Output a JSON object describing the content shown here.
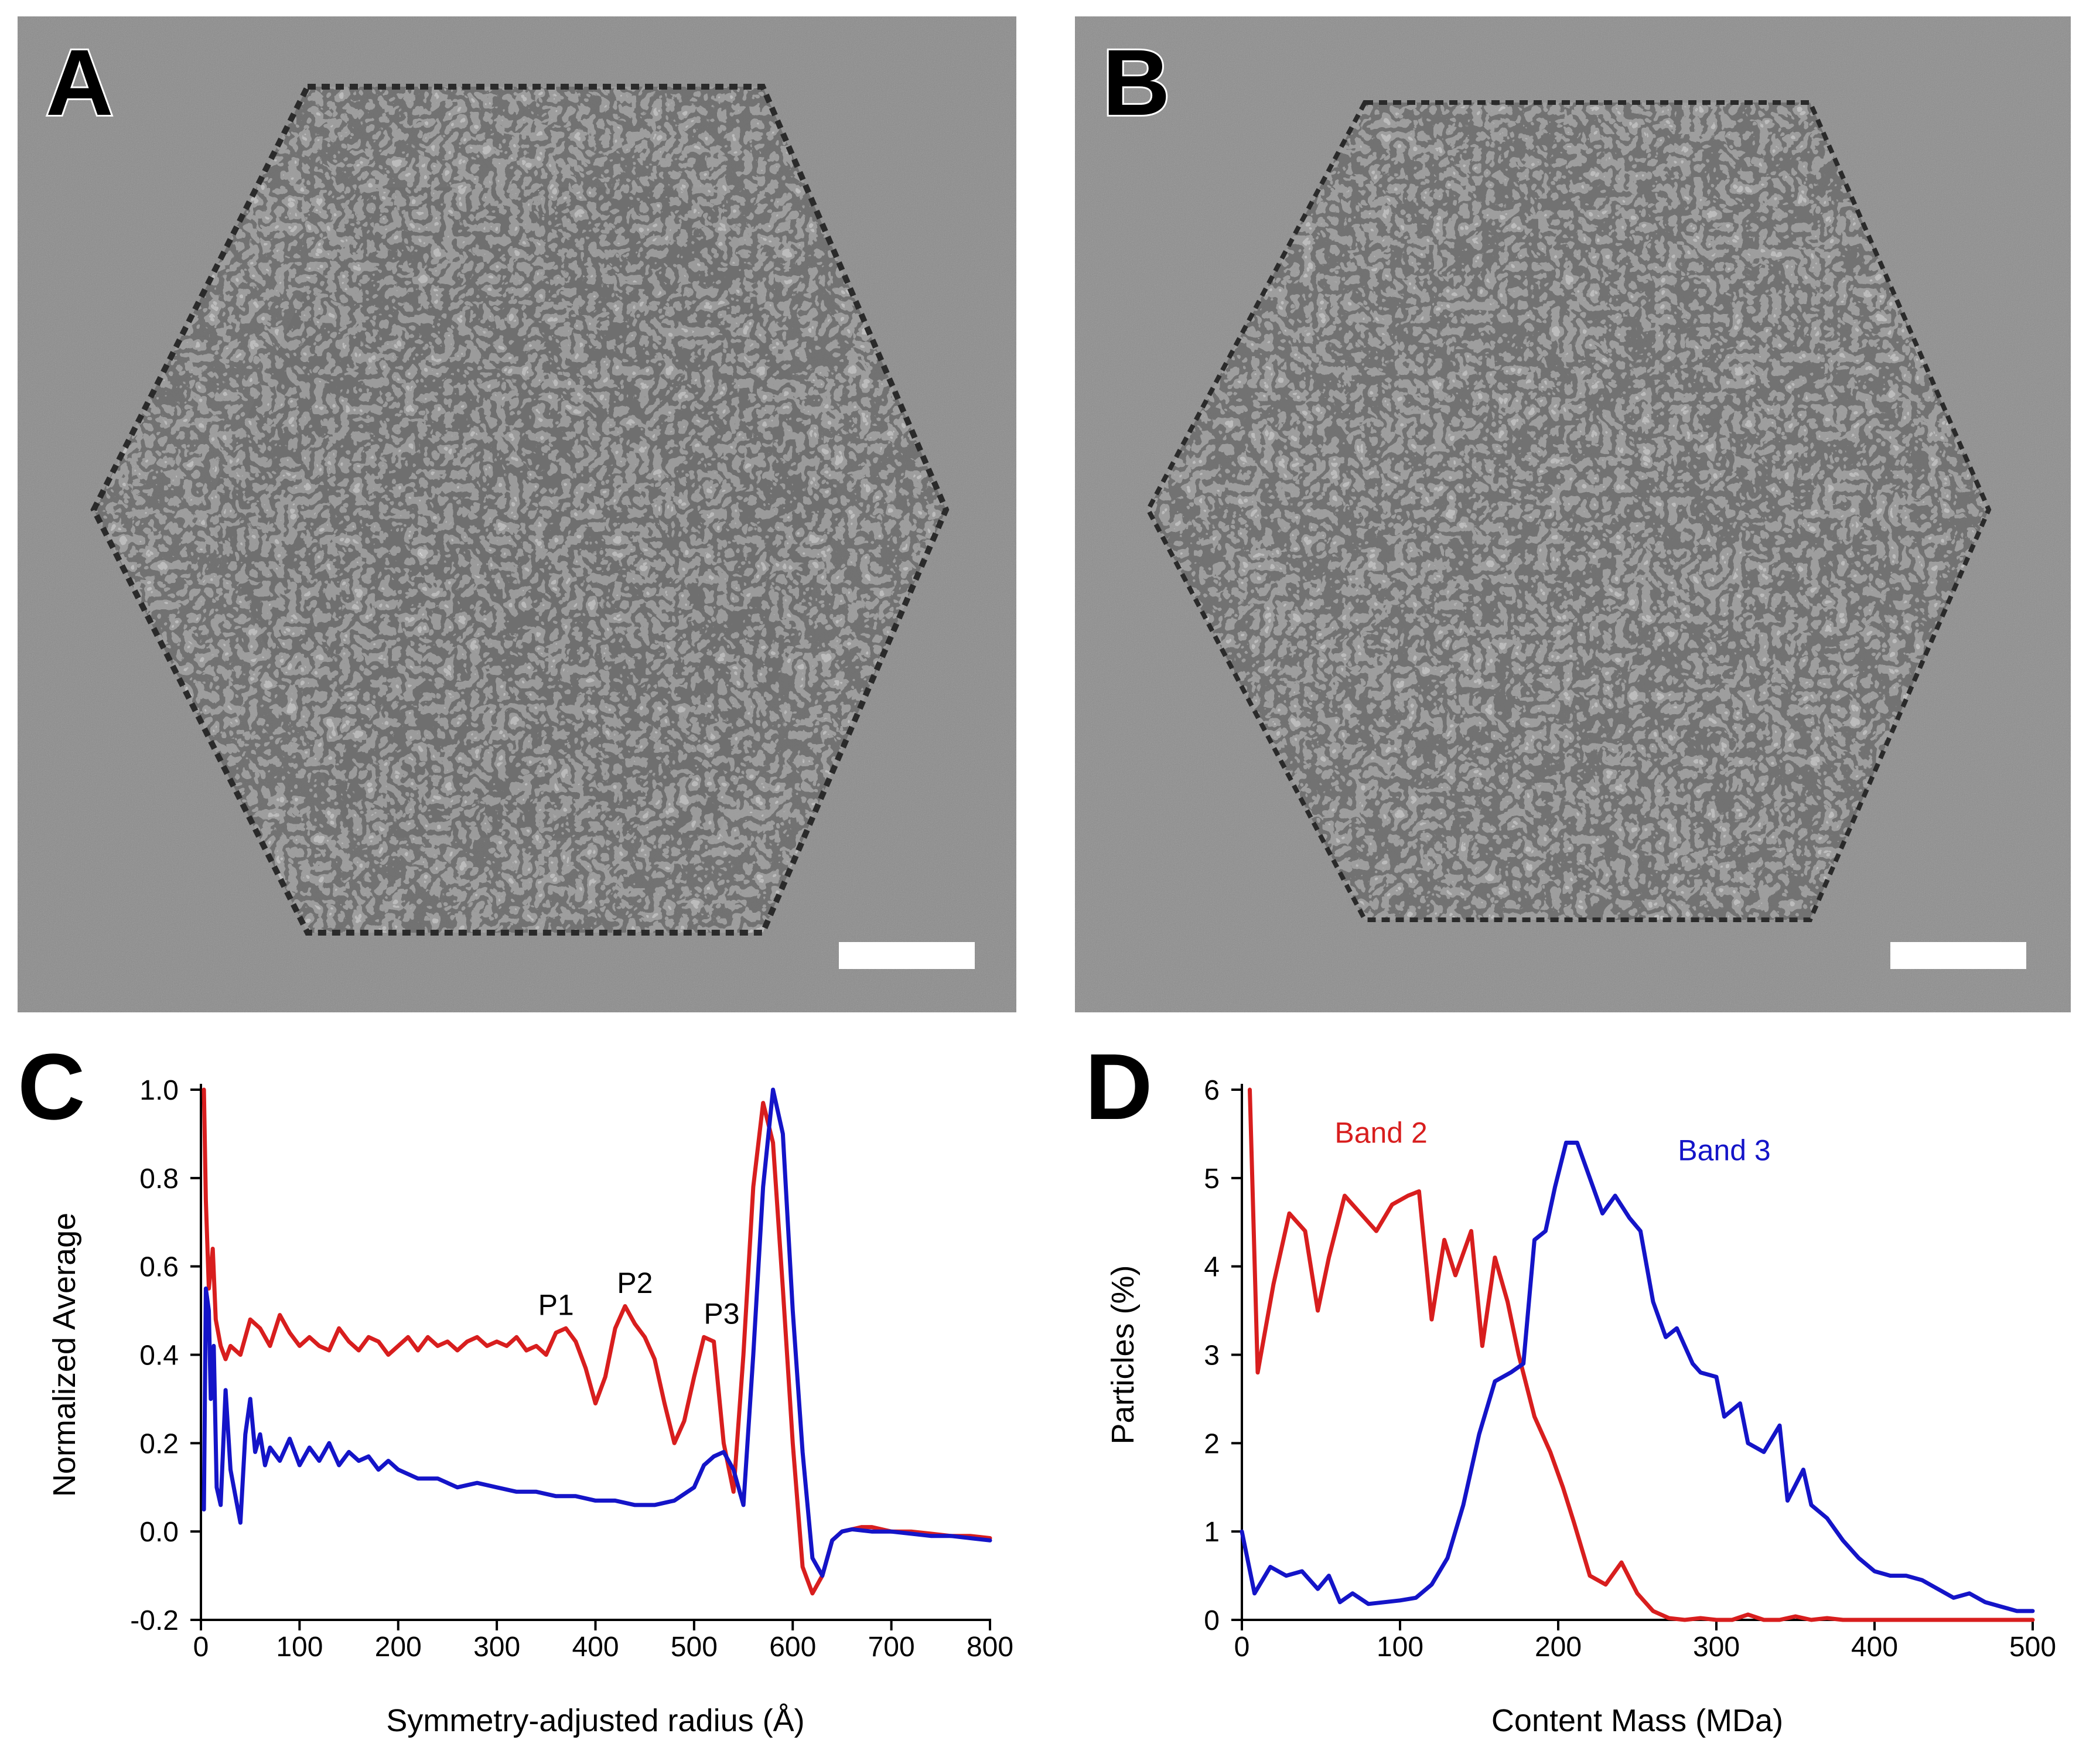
{
  "panels": {
    "A": {
      "label": "A"
    },
    "B": {
      "label": "B"
    },
    "C": {
      "label": "C"
    },
    "D": {
      "label": "D"
    }
  },
  "colors": {
    "red": "#d81e1e",
    "blue": "#1414c8",
    "micrograph": "#8a8a8a"
  },
  "chart_data": [
    {
      "id": "C",
      "type": "line",
      "title": "",
      "xlabel": "Symmetry-adjusted radius (Å)",
      "ylabel": "Normalized Average",
      "xlim": [
        0,
        800
      ],
      "ylim": [
        -0.2,
        1.0
      ],
      "xticks": [
        0,
        100,
        200,
        300,
        400,
        500,
        600,
        700,
        800
      ],
      "yticks": [
        -0.2,
        0.0,
        0.2,
        0.4,
        0.6,
        0.8,
        1.0
      ],
      "ytick_labels": [
        "-0.2",
        "0.0",
        "0.2",
        "0.4",
        "0.6",
        "0.8",
        "1.0"
      ],
      "annotations": [
        {
          "text": "P1",
          "x": 360,
          "y": 0.49
        },
        {
          "text": "P2",
          "x": 440,
          "y": 0.54
        },
        {
          "text": "P3",
          "x": 528,
          "y": 0.47
        }
      ],
      "series": [
        {
          "name": "red",
          "color": "#d81e1e",
          "x": [
            3,
            5,
            8,
            12,
            15,
            20,
            25,
            30,
            40,
            50,
            60,
            70,
            80,
            90,
            100,
            110,
            120,
            130,
            140,
            150,
            160,
            170,
            180,
            190,
            200,
            210,
            220,
            230,
            240,
            250,
            260,
            270,
            280,
            290,
            300,
            310,
            320,
            330,
            340,
            350,
            360,
            370,
            380,
            390,
            400,
            410,
            420,
            430,
            440,
            450,
            460,
            470,
            480,
            490,
            500,
            510,
            520,
            530,
            540,
            550,
            560,
            570,
            580,
            590,
            600,
            610,
            620,
            630,
            640,
            650,
            660,
            670,
            680,
            700,
            720,
            740,
            760,
            780,
            800
          ],
          "y": [
            1.0,
            0.75,
            0.55,
            0.64,
            0.48,
            0.42,
            0.39,
            0.42,
            0.4,
            0.48,
            0.46,
            0.42,
            0.49,
            0.45,
            0.42,
            0.44,
            0.42,
            0.41,
            0.46,
            0.43,
            0.41,
            0.44,
            0.43,
            0.4,
            0.42,
            0.44,
            0.41,
            0.44,
            0.42,
            0.43,
            0.41,
            0.43,
            0.44,
            0.42,
            0.43,
            0.42,
            0.44,
            0.41,
            0.42,
            0.4,
            0.45,
            0.46,
            0.43,
            0.37,
            0.29,
            0.35,
            0.46,
            0.51,
            0.47,
            0.44,
            0.39,
            0.29,
            0.2,
            0.25,
            0.35,
            0.44,
            0.43,
            0.2,
            0.09,
            0.4,
            0.78,
            0.97,
            0.88,
            0.55,
            0.2,
            -0.08,
            -0.14,
            -0.1,
            -0.02,
            0.0,
            0.005,
            0.01,
            0.01,
            0.0,
            0.0,
            -0.005,
            -0.01,
            -0.01,
            -0.015
          ]
        },
        {
          "name": "blue",
          "color": "#1414c8",
          "x": [
            3,
            5,
            8,
            10,
            13,
            16,
            20,
            25,
            30,
            35,
            40,
            45,
            50,
            55,
            60,
            65,
            70,
            80,
            90,
            100,
            110,
            120,
            130,
            140,
            150,
            160,
            170,
            180,
            190,
            200,
            220,
            240,
            260,
            280,
            300,
            320,
            340,
            360,
            380,
            400,
            420,
            440,
            460,
            480,
            500,
            510,
            520,
            530,
            540,
            550,
            560,
            570,
            580,
            590,
            600,
            610,
            620,
            630,
            640,
            650,
            660,
            680,
            700,
            720,
            740,
            760,
            780,
            800
          ],
          "y": [
            0.05,
            0.55,
            0.5,
            0.3,
            0.42,
            0.1,
            0.06,
            0.32,
            0.14,
            0.08,
            0.02,
            0.22,
            0.3,
            0.18,
            0.22,
            0.15,
            0.19,
            0.16,
            0.21,
            0.15,
            0.19,
            0.16,
            0.2,
            0.15,
            0.18,
            0.16,
            0.17,
            0.14,
            0.16,
            0.14,
            0.12,
            0.12,
            0.1,
            0.11,
            0.1,
            0.09,
            0.09,
            0.08,
            0.08,
            0.07,
            0.07,
            0.06,
            0.06,
            0.07,
            0.1,
            0.15,
            0.17,
            0.18,
            0.14,
            0.06,
            0.4,
            0.78,
            1.0,
            0.9,
            0.5,
            0.18,
            -0.06,
            -0.1,
            -0.02,
            0.0,
            0.005,
            0.0,
            0.0,
            -0.005,
            -0.01,
            -0.01,
            -0.015,
            -0.02
          ]
        }
      ]
    },
    {
      "id": "D",
      "type": "line",
      "title": "",
      "xlabel": "Content Mass (MDa)",
      "ylabel": "Particles (%)",
      "xlim": [
        0,
        500
      ],
      "ylim": [
        0,
        6
      ],
      "xticks": [
        0,
        100,
        200,
        300,
        400,
        500
      ],
      "yticks": [
        0,
        1,
        2,
        3,
        4,
        5,
        6
      ],
      "annotations": [
        {
          "text": "Band 2",
          "x": 88,
          "y": 5.4,
          "color": "#d81e1e"
        },
        {
          "text": "Band 3",
          "x": 305,
          "y": 5.2,
          "color": "#1414c8"
        }
      ],
      "series": [
        {
          "name": "Band 2",
          "color": "#d81e1e",
          "x": [
            5,
            10,
            20,
            30,
            40,
            48,
            55,
            65,
            75,
            85,
            95,
            105,
            112,
            120,
            128,
            135,
            145,
            152,
            160,
            168,
            175,
            185,
            195,
            203,
            210,
            220,
            230,
            240,
            250,
            260,
            270,
            280,
            290,
            300,
            310,
            320,
            330,
            340,
            350,
            360,
            370,
            380,
            390,
            400,
            420,
            450,
            500
          ],
          "y": [
            6.0,
            2.8,
            3.8,
            4.6,
            4.4,
            3.5,
            4.1,
            4.8,
            4.6,
            4.4,
            4.7,
            4.8,
            4.85,
            3.4,
            4.3,
            3.9,
            4.4,
            3.1,
            4.1,
            3.6,
            3.0,
            2.3,
            1.9,
            1.5,
            1.1,
            0.5,
            0.4,
            0.65,
            0.3,
            0.1,
            0.02,
            0.0,
            0.02,
            0.0,
            0.0,
            0.06,
            0.0,
            0.0,
            0.04,
            0.0,
            0.02,
            0.0,
            0.0,
            0.0,
            0.0,
            0.0,
            0.0
          ]
        },
        {
          "name": "Band 3",
          "color": "#1414c8",
          "x": [
            0,
            8,
            18,
            28,
            38,
            48,
            55,
            62,
            70,
            80,
            90,
            100,
            110,
            120,
            130,
            140,
            150,
            160,
            170,
            178,
            185,
            192,
            198,
            205,
            212,
            220,
            228,
            236,
            245,
            252,
            260,
            268,
            275,
            285,
            290,
            300,
            305,
            315,
            320,
            330,
            340,
            345,
            355,
            360,
            370,
            380,
            390,
            400,
            410,
            420,
            430,
            440,
            450,
            460,
            470,
            480,
            490,
            500
          ],
          "y": [
            1.0,
            0.3,
            0.6,
            0.5,
            0.55,
            0.35,
            0.5,
            0.2,
            0.3,
            0.18,
            0.2,
            0.22,
            0.25,
            0.4,
            0.7,
            1.3,
            2.1,
            2.7,
            2.8,
            2.9,
            4.3,
            4.4,
            4.9,
            5.4,
            5.4,
            5.0,
            4.6,
            4.8,
            4.55,
            4.4,
            3.6,
            3.2,
            3.3,
            2.9,
            2.8,
            2.75,
            2.3,
            2.45,
            2.0,
            1.9,
            2.2,
            1.35,
            1.7,
            1.3,
            1.15,
            0.9,
            0.7,
            0.55,
            0.5,
            0.5,
            0.45,
            0.35,
            0.25,
            0.3,
            0.2,
            0.15,
            0.1,
            0.1
          ]
        }
      ]
    }
  ]
}
